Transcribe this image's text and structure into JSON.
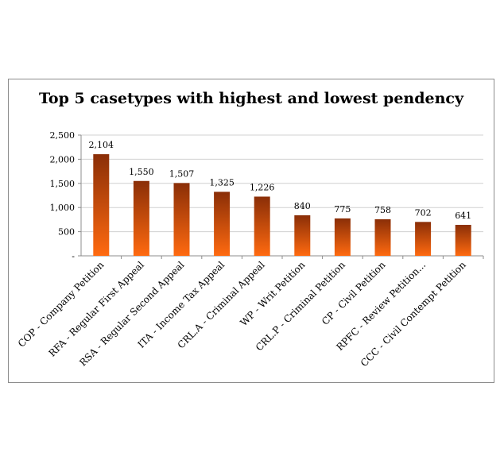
{
  "chart_data": {
    "type": "bar",
    "title": "Top 5 casetypes with highest and lowest pendency",
    "categories": [
      "COP - Company Petition",
      "RFA - Regular First Appeal",
      "RSA - Regular Second Appeal",
      "ITA - Income Tax Appeal",
      "CRL.A - Criminal Appeal",
      "WP - Writ Petition",
      "CRL.P - Criminal Petition",
      "CP - Civil Petition",
      "RPFC - Review Petition...",
      "CCC - Civil Contempt Petition"
    ],
    "values": [
      2104,
      1550,
      1507,
      1325,
      1226,
      840,
      775,
      758,
      702,
      641
    ],
    "data_labels": [
      "2,104",
      "1,550",
      "1,507",
      "1,325",
      "1,226",
      "840",
      "775",
      "758",
      "702",
      "641"
    ],
    "ylim": [
      0,
      2500
    ],
    "y_ticks": [
      0,
      500,
      1000,
      1500,
      2000,
      2500
    ],
    "y_tick_labels": [
      "-",
      "500",
      "1,000",
      "1,500",
      "2,000",
      "2,500"
    ],
    "grid": true,
    "legend": "none",
    "colors": {
      "bar_top": "#8a2e07",
      "bar_bottom": "#ff6a10",
      "grid": "#d0d0d0",
      "axis": "#8c8c8c"
    }
  }
}
